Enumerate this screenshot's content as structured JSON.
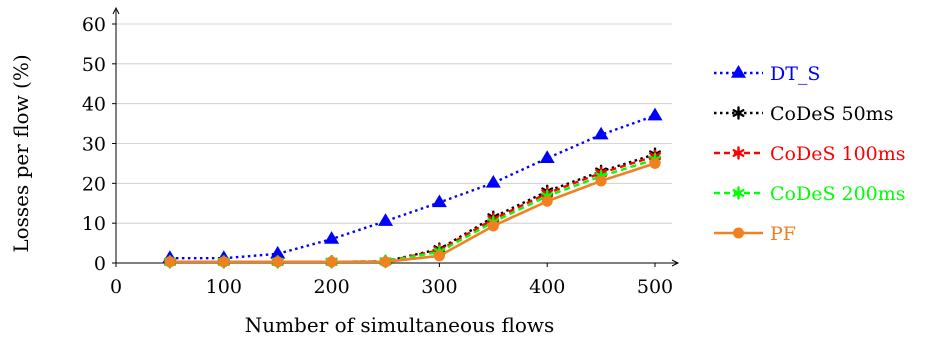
{
  "chart_data": {
    "type": "line",
    "title": "",
    "xlabel": "Number of simultaneous flows",
    "ylabel": "Losses per flow (%)",
    "xlim": [
      0,
      520
    ],
    "ylim": [
      0,
      63
    ],
    "x_ticks": [
      0,
      100,
      200,
      300,
      400,
      500
    ],
    "y_ticks": [
      0,
      10,
      20,
      30,
      40,
      50,
      60
    ],
    "grid": "horizontal",
    "legend_position": "right",
    "x": [
      50,
      100,
      150,
      200,
      250,
      300,
      350,
      400,
      450,
      500
    ],
    "series": [
      {
        "name": "DT_S",
        "values": [
          1.2,
          1.2,
          2.3,
          6.0,
          10.5,
          15.2,
          20.1,
          26.3,
          32.2,
          37.0
        ],
        "color": "#0000ff",
        "line_style": "dotted",
        "marker": "triangle"
      },
      {
        "name": "CoDeS 50ms",
        "values": [
          0.3,
          0.3,
          0.3,
          0.3,
          0.4,
          3.5,
          11.5,
          18.0,
          23.0,
          27.3
        ],
        "color": "#000000",
        "line_style": "dotted",
        "marker": "asterisk"
      },
      {
        "name": "CoDeS 100ms",
        "values": [
          0.3,
          0.3,
          0.3,
          0.3,
          0.4,
          3.2,
          11.0,
          17.5,
          22.6,
          26.8
        ],
        "color": "#ff0000",
        "line_style": "dashed",
        "marker": "asterisk"
      },
      {
        "name": "CoDeS 200ms",
        "values": [
          0.3,
          0.3,
          0.3,
          0.3,
          0.4,
          2.8,
          10.3,
          16.8,
          21.8,
          26.0
        ],
        "color": "#00ff00",
        "line_style": "dashed",
        "marker": "asterisk"
      },
      {
        "name": "PF",
        "values": [
          0.3,
          0.3,
          0.3,
          0.3,
          0.3,
          1.8,
          9.3,
          15.5,
          20.6,
          25.0
        ],
        "color": "#f08020",
        "line_style": "solid",
        "marker": "circle"
      }
    ]
  }
}
